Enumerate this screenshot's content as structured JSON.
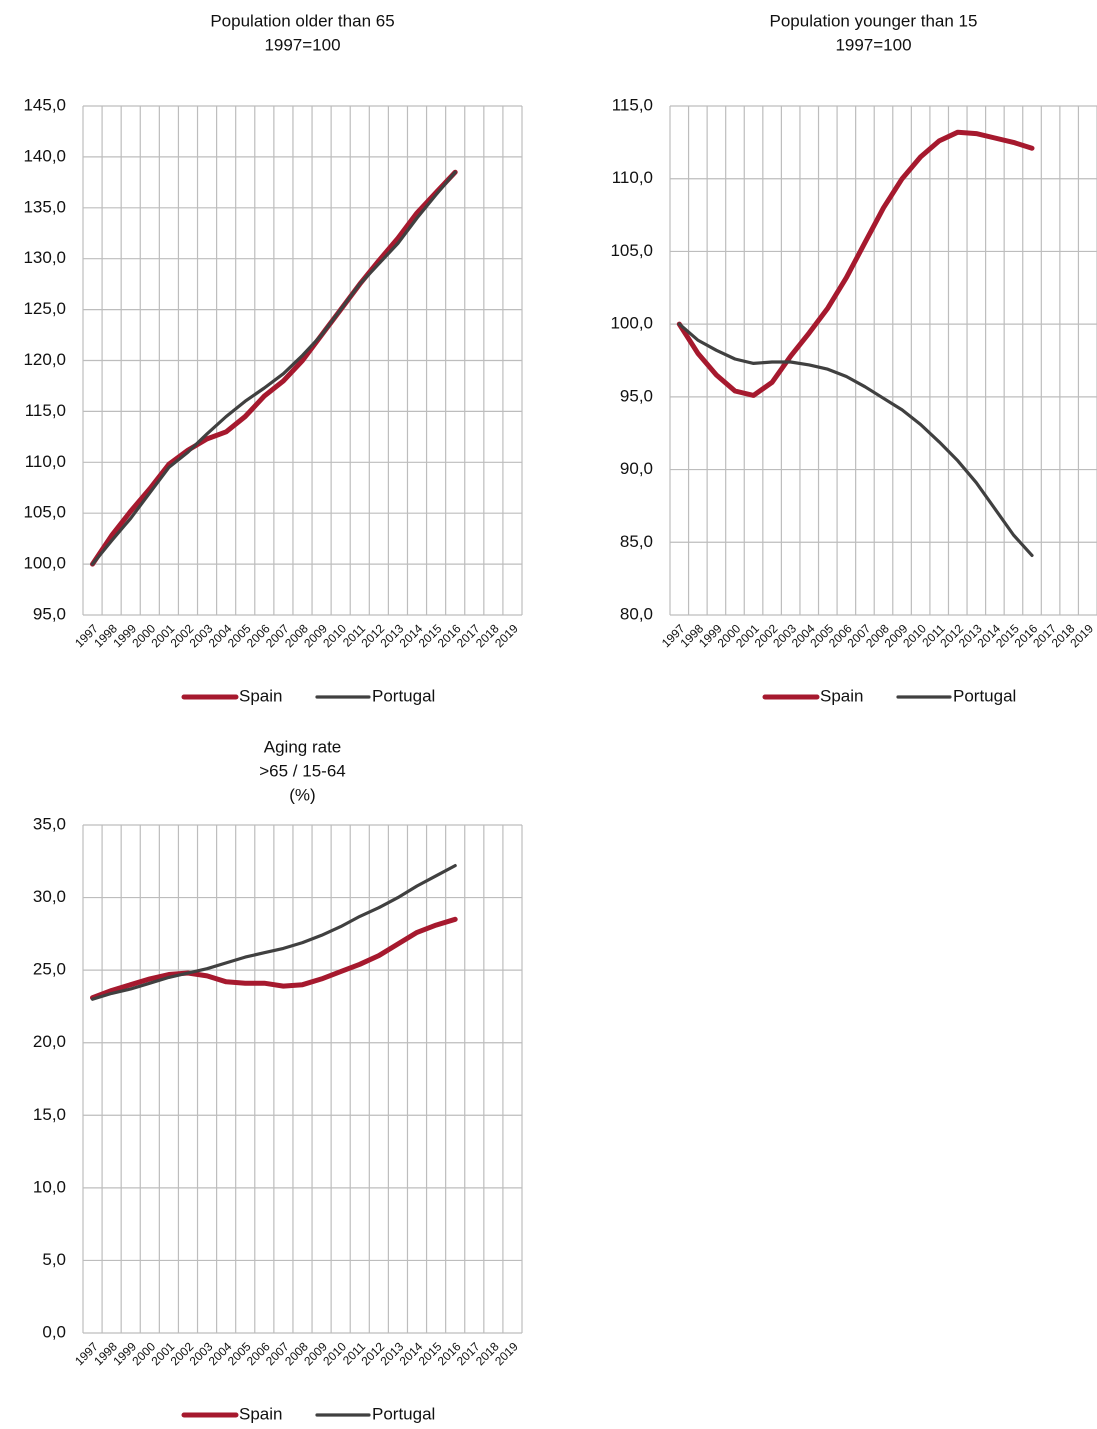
{
  "chart_data": [
    {
      "type": "line",
      "title": "Population older than 65",
      "subtitle": [
        "1997=100"
      ],
      "categories": [
        "1997",
        "1998",
        "1999",
        "2000",
        "2001",
        "2002",
        "2003",
        "2004",
        "2005",
        "2006",
        "2007",
        "2008",
        "2009",
        "2010",
        "2011",
        "2012",
        "2013",
        "2014",
        "2015",
        "2016",
        "2017",
        "2018",
        "2019"
      ],
      "series": [
        {
          "name": "Spain",
          "color": "#a6192e",
          "values": [
            100,
            102.8,
            105.2,
            107.4,
            109.8,
            111.2,
            112.3,
            113.0,
            114.5,
            116.5,
            118.0,
            120.0,
            122.5,
            125.0,
            127.5,
            129.8,
            132.0,
            134.5,
            136.5,
            138.5,
            null,
            null,
            null
          ]
        },
        {
          "name": "Portugal",
          "color": "#404040",
          "values": [
            100,
            102.3,
            104.5,
            107.0,
            109.5,
            111.0,
            112.8,
            114.5,
            116.0,
            117.3,
            118.7,
            120.5,
            122.5,
            125.0,
            127.5,
            129.5,
            131.5,
            134.0,
            136.3,
            138.5,
            null,
            null,
            null
          ]
        }
      ],
      "ylim": [
        95,
        145
      ],
      "yticks": [
        {
          "value": 95,
          "label": "95,0"
        },
        {
          "value": 100,
          "label": "100,0"
        },
        {
          "value": 105,
          "label": "105,0"
        },
        {
          "value": 110,
          "label": "110,0"
        },
        {
          "value": 115,
          "label": "115,0"
        },
        {
          "value": 120,
          "label": "120,0"
        },
        {
          "value": 125,
          "label": "125,0"
        },
        {
          "value": 130,
          "label": "130,0"
        },
        {
          "value": 135,
          "label": "135,0"
        },
        {
          "value": 140,
          "label": "140,0"
        },
        {
          "value": 145,
          "label": "145,0"
        }
      ],
      "grid": true,
      "legend": "bottom"
    },
    {
      "type": "line",
      "title": "Population younger than 15",
      "subtitle": [
        "1997=100"
      ],
      "categories": [
        "1997",
        "1998",
        "1999",
        "2000",
        "2001",
        "2002",
        "2003",
        "2004",
        "2005",
        "2006",
        "2007",
        "2008",
        "2009",
        "2010",
        "2011",
        "2012",
        "2013",
        "2014",
        "2015",
        "2016",
        "2017",
        "2018",
        "2019"
      ],
      "series": [
        {
          "name": "Spain",
          "color": "#a6192e",
          "values": [
            100,
            98.0,
            96.5,
            95.4,
            95.1,
            96.0,
            97.8,
            99.4,
            101.1,
            103.2,
            105.6,
            108.0,
            110.0,
            111.5,
            112.6,
            113.2,
            113.1,
            112.8,
            112.5,
            112.1,
            null,
            null,
            null
          ]
        },
        {
          "name": "Portugal",
          "color": "#404040",
          "values": [
            100,
            98.9,
            98.2,
            97.6,
            97.3,
            97.4,
            97.4,
            97.2,
            96.9,
            96.4,
            95.7,
            94.9,
            94.1,
            93.1,
            91.9,
            90.6,
            89.1,
            87.3,
            85.5,
            84.1,
            null,
            null,
            null
          ]
        }
      ],
      "ylim": [
        80,
        115
      ],
      "yticks": [
        {
          "value": 80,
          "label": "80,0"
        },
        {
          "value": 85,
          "label": "85,0"
        },
        {
          "value": 90,
          "label": "90,0"
        },
        {
          "value": 95,
          "label": "95,0"
        },
        {
          "value": 100,
          "label": "100,0"
        },
        {
          "value": 105,
          "label": "105,0"
        },
        {
          "value": 110,
          "label": "110,0"
        },
        {
          "value": 115,
          "label": "115,0"
        }
      ],
      "grid": true,
      "legend": "bottom"
    },
    {
      "type": "line",
      "title": "Aging rate",
      "subtitle": [
        ">65 / 15-64",
        "(%)"
      ],
      "categories": [
        "1997",
        "1998",
        "1999",
        "2000",
        "2001",
        "2002",
        "2003",
        "2004",
        "2005",
        "2006",
        "2007",
        "2008",
        "2009",
        "2010",
        "2011",
        "2012",
        "2013",
        "2014",
        "2015",
        "2016",
        "2017",
        "2018",
        "2019"
      ],
      "series": [
        {
          "name": "Spain",
          "color": "#a6192e",
          "values": [
            23.1,
            23.6,
            24.0,
            24.4,
            24.7,
            24.8,
            24.6,
            24.2,
            24.1,
            24.1,
            23.9,
            24.0,
            24.4,
            24.9,
            25.4,
            26.0,
            26.8,
            27.6,
            28.1,
            28.5,
            null,
            null,
            null
          ]
        },
        {
          "name": "Portugal",
          "color": "#404040",
          "values": [
            23.0,
            23.4,
            23.7,
            24.1,
            24.5,
            24.8,
            25.1,
            25.5,
            25.9,
            26.2,
            26.5,
            26.9,
            27.4,
            28.0,
            28.7,
            29.3,
            30.0,
            30.8,
            31.5,
            32.2,
            null,
            null,
            null
          ]
        }
      ],
      "ylim": [
        0,
        35
      ],
      "yticks": [
        {
          "value": 0,
          "label": "0,0"
        },
        {
          "value": 5,
          "label": "5,0"
        },
        {
          "value": 10,
          "label": "10,0"
        },
        {
          "value": 15,
          "label": "15,0"
        },
        {
          "value": 20,
          "label": "20,0"
        },
        {
          "value": 25,
          "label": "25,0"
        },
        {
          "value": 30,
          "label": "30,0"
        },
        {
          "value": 35,
          "label": "35,0"
        }
      ],
      "grid": true,
      "legend": "bottom"
    }
  ]
}
